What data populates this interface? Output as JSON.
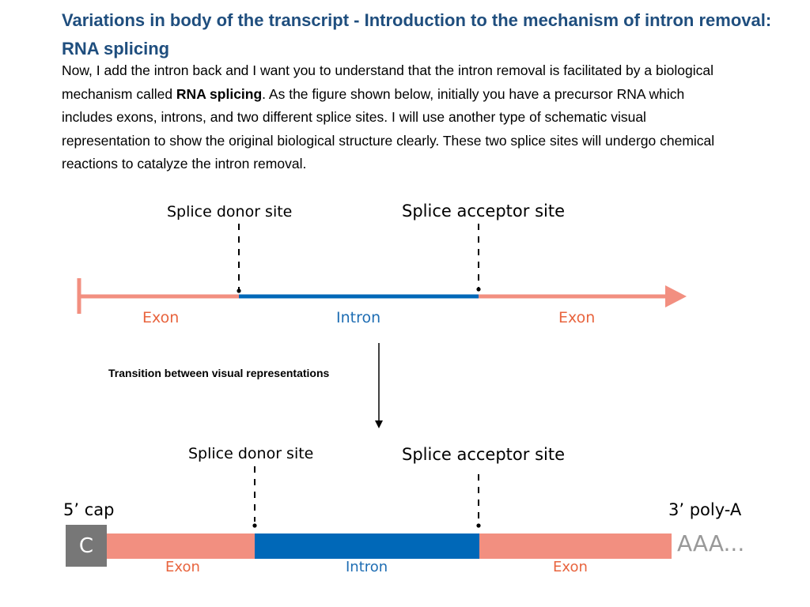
{
  "heading": {
    "title": "Variations in body of the transcript - Introduction to the mechanism of intron removal: RNA splicing"
  },
  "paragraph": {
    "part1": "Now, I add the intron back and I want you to understand that the intron removal is facilitated by a biological mechanism called ",
    "bold": "RNA splicing",
    "part2": ". As the figure shown below, initially you have a precursor RNA which includes exons, introns, and two different splice sites. I will use another type of schematic visual representation to show the original biological structure clearly. These two splice sites will undergo chemical reactions to catalyze the intron removal."
  },
  "diagram_top": {
    "donor_label": "Splice donor site",
    "acceptor_label": "Splice acceptor site",
    "exon1": "Exon",
    "intron": "Intron",
    "exon2": "Exon"
  },
  "transition_label": "Transition between visual representations",
  "diagram_bottom": {
    "donor_label": "Splice donor site",
    "acceptor_label": "Splice acceptor site",
    "cap_label": "5’ cap",
    "cap_glyph": "C",
    "polya_label": "3’ poly-A",
    "polya_glyph": "AAA...",
    "exon1": "Exon",
    "intron": "Intron",
    "exon2": "Exon"
  },
  "colors": {
    "exon": "#f28f80",
    "intron": "#0068b8",
    "exon_text": "#e8643e",
    "intron_text": "#1e6db3",
    "title": "#1f4e7e"
  }
}
